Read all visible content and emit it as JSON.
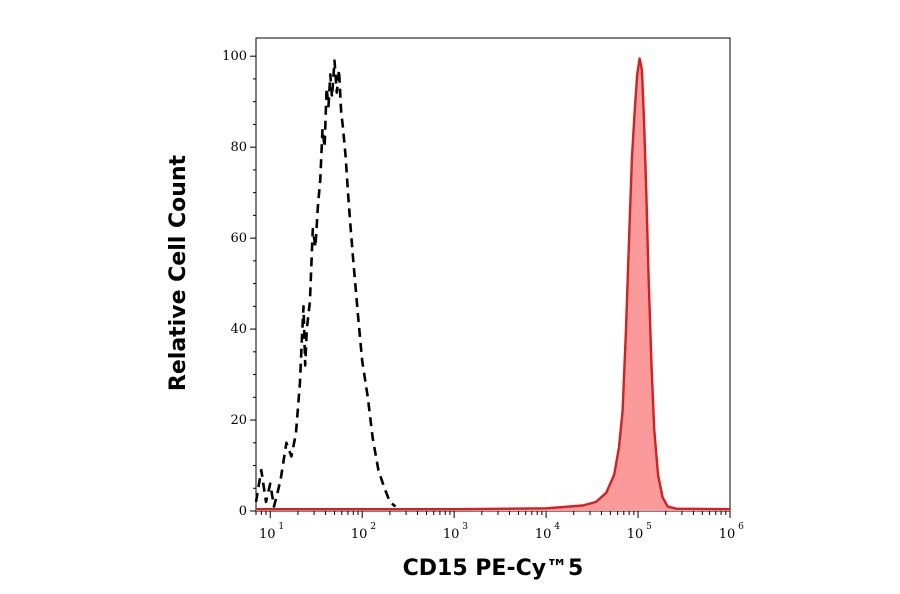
{
  "chart_data": {
    "type": "area",
    "title": "",
    "xlabel": "CD15 PE-Cy™5",
    "ylabel": "Relative Cell Count",
    "x_scale": "log",
    "xlim": [
      7,
      1000000
    ],
    "ylim": [
      0,
      104
    ],
    "x_ticks": [
      {
        "base": "10",
        "exp": "1",
        "value": 10
      },
      {
        "base": "10",
        "exp": "2",
        "value": 100
      },
      {
        "base": "10",
        "exp": "3",
        "value": 1000
      },
      {
        "base": "10",
        "exp": "4",
        "value": 10000
      },
      {
        "base": "10",
        "exp": "5",
        "value": 100000
      },
      {
        "base": "10",
        "exp": "6",
        "value": 1000000
      }
    ],
    "y_ticks": [
      "0",
      "20",
      "40",
      "60",
      "80",
      "100"
    ],
    "grid": false,
    "legend": "none",
    "series": [
      {
        "style": "dashed",
        "color": "#000000",
        "fill": "none",
        "points": [
          [
            7,
            2
          ],
          [
            8,
            9
          ],
          [
            9,
            2
          ],
          [
            10,
            6
          ],
          [
            11,
            1
          ],
          [
            12,
            4
          ],
          [
            13,
            7
          ],
          [
            15,
            15
          ],
          [
            17,
            12
          ],
          [
            19,
            17
          ],
          [
            21,
            28
          ],
          [
            22,
            37
          ],
          [
            23,
            45
          ],
          [
            24,
            32
          ],
          [
            25,
            40
          ],
          [
            27,
            46
          ],
          [
            29,
            62
          ],
          [
            31,
            58
          ],
          [
            33,
            67
          ],
          [
            35,
            73
          ],
          [
            37,
            84
          ],
          [
            39,
            80
          ],
          [
            41,
            93
          ],
          [
            43,
            89
          ],
          [
            45,
            96
          ],
          [
            47,
            91
          ],
          [
            50,
            99
          ],
          [
            53,
            92
          ],
          [
            56,
            97
          ],
          [
            59,
            88
          ],
          [
            62,
            84
          ],
          [
            66,
            78
          ],
          [
            70,
            70
          ],
          [
            75,
            62
          ],
          [
            80,
            55
          ],
          [
            90,
            43
          ],
          [
            100,
            33
          ],
          [
            115,
            25
          ],
          [
            130,
            16
          ],
          [
            150,
            9
          ],
          [
            175,
            5
          ],
          [
            200,
            2
          ],
          [
            230,
            1
          ]
        ]
      },
      {
        "style": "solid",
        "color": "#d42020",
        "fill": "#fa9a9a",
        "points": [
          [
            7,
            0.4
          ],
          [
            1000,
            0.4
          ],
          [
            10000,
            0.6
          ],
          [
            25000,
            1.2
          ],
          [
            35000,
            2
          ],
          [
            45000,
            4
          ],
          [
            55000,
            8
          ],
          [
            62000,
            14
          ],
          [
            68000,
            22
          ],
          [
            74000,
            40
          ],
          [
            80000,
            60
          ],
          [
            86000,
            78
          ],
          [
            92000,
            88
          ],
          [
            98000,
            96
          ],
          [
            104000,
            99.5
          ],
          [
            110000,
            97
          ],
          [
            116000,
            86
          ],
          [
            123000,
            70
          ],
          [
            130000,
            52
          ],
          [
            140000,
            32
          ],
          [
            150000,
            18
          ],
          [
            165000,
            8
          ],
          [
            185000,
            3
          ],
          [
            210000,
            1
          ],
          [
            260000,
            0.5
          ],
          [
            1000000,
            0.4
          ]
        ]
      }
    ]
  }
}
